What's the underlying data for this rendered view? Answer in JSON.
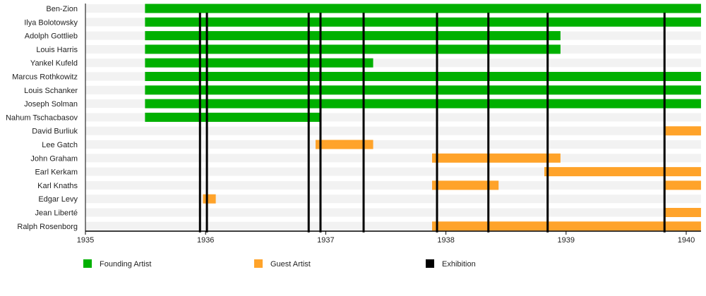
{
  "chart_data": {
    "type": "timeline",
    "xlim": [
      "1935-01-01",
      "1940-02-15"
    ],
    "x_ticks": [
      "1935",
      "1936",
      "1937",
      "1938",
      "1939",
      "1940"
    ],
    "colors": {
      "founding": "#00b000",
      "guest": "#ffa32a",
      "exhibition": "#000000",
      "band": "#f2f2f2"
    },
    "legend": [
      {
        "key": "founding",
        "label": "Founding Artist"
      },
      {
        "key": "guest",
        "label": "Guest Artist"
      },
      {
        "key": "exhibition",
        "label": "Exhibition"
      }
    ],
    "artists": [
      {
        "name": "Ben-Zion",
        "periods": [
          {
            "type": "founding",
            "start": "1935-07-01",
            "end": "1940-02-15"
          }
        ]
      },
      {
        "name": "Ilya Bolotowsky",
        "periods": [
          {
            "type": "founding",
            "start": "1935-07-01",
            "end": "1940-02-15"
          }
        ]
      },
      {
        "name": "Adolph Gottlieb",
        "periods": [
          {
            "type": "founding",
            "start": "1935-07-01",
            "end": "1938-12-15"
          }
        ]
      },
      {
        "name": "Louis Harris",
        "periods": [
          {
            "type": "founding",
            "start": "1935-07-01",
            "end": "1938-12-15"
          }
        ]
      },
      {
        "name": "Yankel Kufeld",
        "periods": [
          {
            "type": "founding",
            "start": "1935-07-01",
            "end": "1937-05-25"
          }
        ]
      },
      {
        "name": "Marcus Rothkowitz",
        "periods": [
          {
            "type": "founding",
            "start": "1935-07-01",
            "end": "1940-02-15"
          }
        ]
      },
      {
        "name": "Louis Schanker",
        "periods": [
          {
            "type": "founding",
            "start": "1935-07-01",
            "end": "1940-02-15"
          }
        ]
      },
      {
        "name": "Joseph Solman",
        "periods": [
          {
            "type": "founding",
            "start": "1935-07-01",
            "end": "1940-02-15"
          }
        ]
      },
      {
        "name": "Nahum Tschacbasov",
        "periods": [
          {
            "type": "founding",
            "start": "1935-07-01",
            "end": "1936-12-15"
          }
        ]
      },
      {
        "name": "David Burliuk",
        "periods": [
          {
            "type": "guest",
            "start": "1939-10-27",
            "end": "1940-02-15"
          }
        ]
      },
      {
        "name": "Lee Gatch",
        "periods": [
          {
            "type": "guest",
            "start": "1936-12-01",
            "end": "1937-05-25"
          }
        ]
      },
      {
        "name": "John Graham",
        "periods": [
          {
            "type": "guest",
            "start": "1937-11-20",
            "end": "1938-12-15"
          }
        ]
      },
      {
        "name": "Earl Kerkam",
        "periods": [
          {
            "type": "guest",
            "start": "1938-10-27",
            "end": "1940-02-15"
          }
        ]
      },
      {
        "name": "Karl Knaths",
        "periods": [
          {
            "type": "guest",
            "start": "1937-11-20",
            "end": "1938-06-10"
          },
          {
            "type": "guest",
            "start": "1939-10-27",
            "end": "1940-02-15"
          }
        ]
      },
      {
        "name": "Edgar Levy",
        "periods": [
          {
            "type": "guest",
            "start": "1935-12-24",
            "end": "1936-02-01"
          }
        ]
      },
      {
        "name": "Jean Liberté",
        "periods": [
          {
            "type": "guest",
            "start": "1939-10-27",
            "end": "1940-02-15"
          }
        ]
      },
      {
        "name": "Ralph Rosenborg",
        "periods": [
          {
            "type": "guest",
            "start": "1937-11-20",
            "end": "1940-02-15"
          }
        ]
      }
    ],
    "exhibitions": [
      "1935-12-15",
      "1936-01-05",
      "1936-11-10",
      "1936-12-16",
      "1937-04-26",
      "1937-12-05",
      "1938-05-10",
      "1938-11-06",
      "1939-10-27"
    ]
  }
}
